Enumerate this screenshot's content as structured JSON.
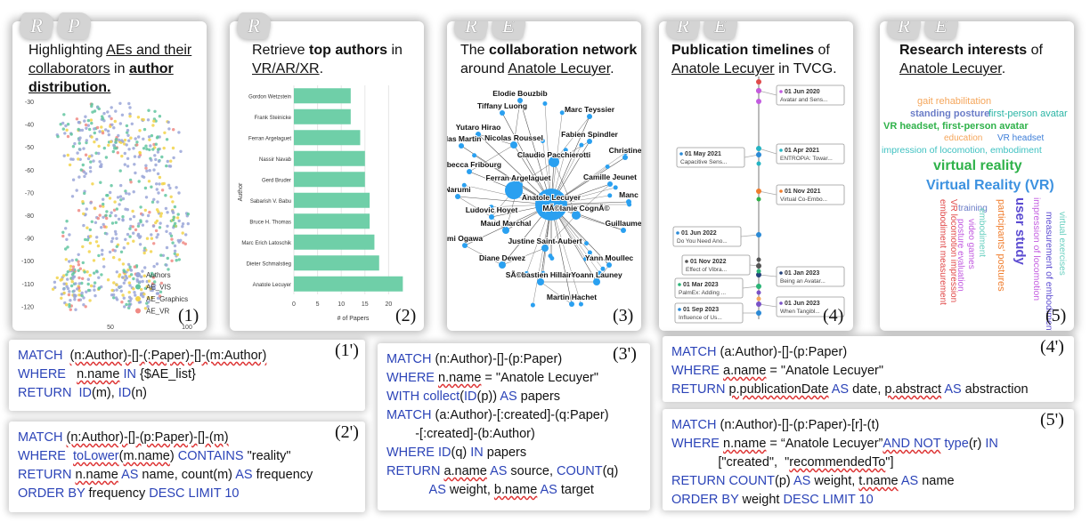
{
  "panels": [
    {
      "tags": [
        "R",
        "P"
      ],
      "title_parts": [
        "Highlighting ",
        "AEs and their collaborators",
        " in ",
        "author distribution."
      ],
      "number": "(1)"
    },
    {
      "tags": [
        "R"
      ],
      "title_parts": [
        "Retrieve ",
        "top authors",
        " in ",
        "VR/AR/XR",
        "."
      ],
      "number": "(2)"
    },
    {
      "tags": [
        "R",
        "E"
      ],
      "title_parts": [
        "The ",
        "collaboration network",
        " around ",
        "Anatole Lecuyer",
        "."
      ],
      "number": "(3)"
    },
    {
      "tags": [
        "R",
        "E"
      ],
      "title_parts": [
        "Publication timelines",
        " of ",
        "Anatole Lecuyer",
        " in TVCG."
      ],
      "number": "(4)"
    },
    {
      "tags": [
        "R",
        "E"
      ],
      "title_parts": [
        "Research interests",
        " of ",
        "Anatole Lecuyer",
        "."
      ],
      "number": "(5)"
    }
  ],
  "scatter": {
    "y_ticks": [
      "-30",
      "-40",
      "-50",
      "-60",
      "-70",
      "-80",
      "-90",
      "-100",
      "-110",
      "-120"
    ],
    "x_ticks": [
      "50",
      "100"
    ],
    "legend": [
      {
        "label": "Authors",
        "color": "#9aa6d8"
      },
      {
        "label": "AE_VIS",
        "color": "#61c5a0"
      },
      {
        "label": "AE_Graphics",
        "color": "#f2d34a"
      },
      {
        "label": "AE_VR",
        "color": "#f08a84"
      }
    ]
  },
  "chart_data": {
    "type": "bar",
    "orientation": "horizontal",
    "categories": [
      "Gordon Wetzstein",
      "Frank Steinicke",
      "Ferran Argelaguet",
      "Nassir Navab",
      "Gerd Bruder",
      "Sabarish V. Babu",
      "Bruce H. Thomas",
      "Marc Erich Latoschik",
      "Dieter Schmalstieg",
      "Anatole Lecuyer"
    ],
    "values": [
      12,
      12,
      14,
      15,
      15,
      16,
      16,
      17,
      18,
      23
    ],
    "xlabel": "# of Papers",
    "ylabel": "Author",
    "x_ticks": [
      "0",
      "5",
      "10",
      "15",
      "20"
    ],
    "xlim": [
      0,
      25
    ],
    "color": "#6fcfa8"
  },
  "network": {
    "labels": [
      "Elodie Bouzbib",
      "Tiffany Luong",
      "Marc Teyssier",
      "Yutaro Hirao",
      "olas Martin",
      "Nicolas Roussel",
      "Fabien Spindler",
      "Claudio Pacchierotti",
      "Christine",
      "Rebecca Fribourg",
      "Ferran Argelaguet",
      "Narumi",
      "Camille Jeunet",
      "Anatole Lecuyer",
      "Manc",
      "Ludovic Hoyet",
      "MÃ©lanie CognÃ©",
      "Maud Marchal",
      "Guillaume",
      "mi Ogawa",
      "Justine Saint-Aubert",
      "Diane Dewez",
      "Yann Moullec",
      "SÃ©bastien Hillaire",
      "Yoann Launey",
      "Martin Hachet"
    ]
  },
  "timeline": {
    "events": [
      {
        "date": "01 Jun 2020",
        "text": "Avatar and Sens...",
        "color": "#c25be0"
      },
      {
        "date": "01 May 2021",
        "text": "Capacitive Sens...",
        "color": "#2b8ad6"
      },
      {
        "date": "01 Apr 2021",
        "text": "ENTROPiA: Towar...",
        "color": "#25b5c4"
      },
      {
        "date": "01 Nov 2021",
        "text": "Virtual Co-Embo...",
        "color": "#f07d2d"
      },
      {
        "date": "01 Jun 2022",
        "text": "Do You Need Ano...",
        "color": "#2b8ad6"
      },
      {
        "date": "01 Nov 2022",
        "text": "Effect of Vibra...",
        "color": "#555555"
      },
      {
        "date": "01 Jan 2023",
        "text": "Being an Avatar...",
        "color": "#24427a"
      },
      {
        "date": "01 Mar 2023",
        "text": "PalmEx: Adding ...",
        "color": "#2bb577"
      },
      {
        "date": "01 Jun 2023",
        "text": "When Tangibl...",
        "color": "#7a52c7"
      },
      {
        "date": "01 Sep 2023",
        "text": "Influence of Us...",
        "color": "#2b8ad6"
      }
    ]
  },
  "wordcloud": {
    "words": [
      {
        "text": "gait rehabilitation",
        "color": "#f5a65b"
      },
      {
        "text": "standing posture",
        "color": "#6a7cc7"
      },
      {
        "text": "first-person avatar",
        "color": "#2bb5a5"
      },
      {
        "text": "VR headset, first-person avatar",
        "color": "#2fb24a"
      },
      {
        "text": "education",
        "color": "#f5a65b"
      },
      {
        "text": "VR headset",
        "color": "#3d7ed8"
      },
      {
        "text": "impression of locomotion, embodiment",
        "color": "#3fc1c1"
      },
      {
        "text": "virtual reality",
        "color": "#2fb24a"
      },
      {
        "text": "Virtual Reality (VR)",
        "color": "#3d92e0"
      },
      {
        "text": "VR locomotion impression",
        "color": "#e04a4a"
      },
      {
        "text": "embodiment measurement",
        "color": "#e04a4a"
      },
      {
        "text": "training",
        "color": "#6a7cc7"
      },
      {
        "text": "video games",
        "color": "#c25be0"
      },
      {
        "text": "posture evaluation",
        "color": "#c25be0"
      },
      {
        "text": "embodiment",
        "color": "#6ad0c0"
      },
      {
        "text": "participants' postures",
        "color": "#f07d2d"
      },
      {
        "text": "user study",
        "color": "#5b4bd1"
      },
      {
        "text": "impression of locomotion",
        "color": "#c25be0"
      },
      {
        "text": "measurement of embodiment",
        "color": "#5b4bd1"
      },
      {
        "text": "virtual exercises",
        "color": "#6ad0c0"
      }
    ]
  },
  "queries": {
    "q1": {
      "number": "(1')"
    },
    "q2": {
      "number": "(2')"
    },
    "q3": {
      "number": "(3')"
    },
    "q4": {
      "number": "(4')"
    },
    "q5": {
      "number": "(5')"
    }
  }
}
